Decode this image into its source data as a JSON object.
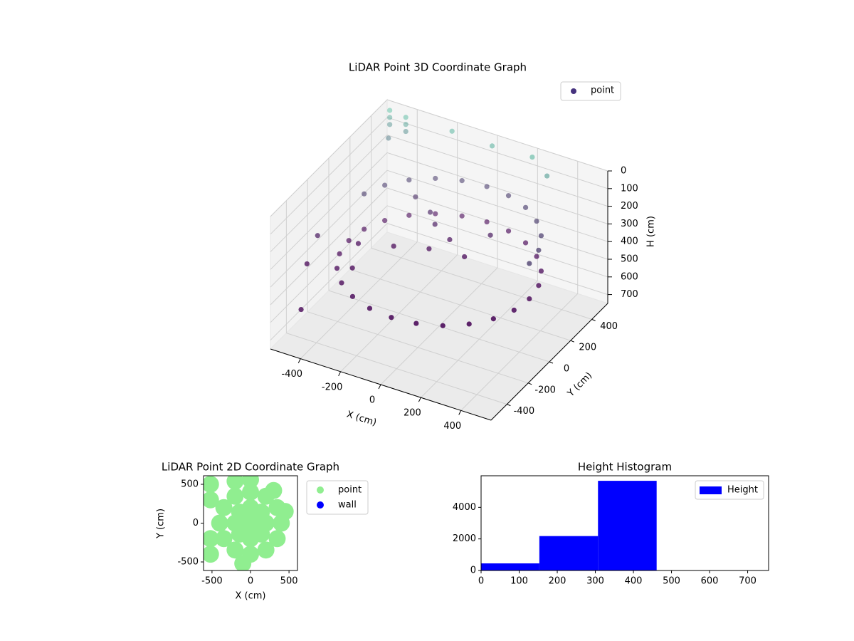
{
  "chart_data": [
    {
      "type": "scatter3d",
      "title": "LiDAR Point 3D Coordinate Graph",
      "xlabel": "X (cm)",
      "ylabel": "Y (cm)",
      "zlabel": "H (cm)",
      "xlim": [
        -550,
        550
      ],
      "ylim": [
        -550,
        550
      ],
      "zlim": [
        0,
        750
      ],
      "zinvert": true,
      "xticks": [
        -400,
        -200,
        0,
        200,
        400
      ],
      "yticks": [
        -400,
        -200,
        0,
        200,
        400
      ],
      "zticks": [
        0,
        100,
        200,
        300,
        400,
        500,
        600,
        700
      ],
      "grid": true,
      "legend": "upper right",
      "colormap": [
        "#5fc3a6",
        "#440154"
      ],
      "series": [
        {
          "name": "point",
          "color": "#46327e",
          "x": [
            450,
            435,
            390,
            318,
            225,
            116,
            0,
            -116,
            -225,
            -318,
            -390,
            -435,
            -450,
            -435,
            -390,
            -318,
            -225,
            -116,
            0,
            116,
            225,
            318,
            390,
            435,
            450,
            435,
            390,
            318,
            225,
            116,
            0,
            -116,
            -225,
            -318,
            -390,
            -435,
            -150,
            -100,
            0,
            -250,
            100,
            -50,
            150,
            -200,
            -500,
            -500,
            -500,
            -480,
            -420,
            -420,
            -420,
            -200,
            0,
            200,
            300,
            -500,
            -500,
            -450,
            -350,
            -300
          ],
          "y": [
            0,
            116,
            225,
            318,
            390,
            435,
            450,
            435,
            390,
            318,
            225,
            116,
            0,
            -116,
            -225,
            -318,
            -390,
            -435,
            -450,
            -435,
            -390,
            -318,
            -225,
            -116,
            0,
            116,
            225,
            318,
            390,
            435,
            450,
            435,
            390,
            318,
            225,
            116,
            200,
            150,
            100,
            250,
            50,
            0,
            200,
            -50,
            480,
            480,
            480,
            430,
            480,
            480,
            480,
            500,
            500,
            500,
            450,
            -200,
            -300,
            -450,
            -100,
            -250
          ],
          "z": [
            430,
            430,
            430,
            430,
            430,
            430,
            430,
            430,
            430,
            430,
            430,
            430,
            430,
            430,
            430,
            430,
            430,
            430,
            430,
            430,
            430,
            430,
            430,
            430,
            230,
            230,
            230,
            230,
            230,
            230,
            230,
            230,
            230,
            230,
            230,
            230,
            280,
            300,
            320,
            260,
            350,
            330,
            300,
            340,
            0,
            40,
            80,
            120,
            10,
            50,
            90,
            20,
            30,
            20,
            60,
            300,
            400,
            550,
            350,
            380
          ]
        }
      ]
    },
    {
      "type": "scatter",
      "title": "LiDAR Point 2D Coordinate Graph",
      "xlabel": "X (cm)",
      "ylabel": "Y (cm)",
      "xlim": [
        -610,
        610
      ],
      "ylim": [
        -610,
        610
      ],
      "xticks": [
        -500,
        0,
        500
      ],
      "yticks": [
        -500,
        0,
        500
      ],
      "legend": "outside right",
      "series": [
        {
          "name": "point",
          "color": "#90ee90",
          "x": [
            0,
            200,
            141,
            0,
            -141,
            -200,
            -141,
            0,
            141,
            400,
            346,
            200,
            0,
            -200,
            -346,
            -400,
            -346,
            -200,
            0,
            200,
            346,
            -520,
            -520,
            -520,
            -520,
            0,
            -200,
            -100,
            450,
            300
          ],
          "y": [
            0,
            0,
            141,
            200,
            141,
            0,
            -141,
            -200,
            -141,
            0,
            200,
            346,
            400,
            346,
            200,
            0,
            -200,
            -346,
            -400,
            -346,
            -200,
            500,
            300,
            -200,
            -400,
            560,
            540,
            -520,
            150,
            420
          ]
        },
        {
          "name": "wall",
          "color": "#0000ff",
          "x": [],
          "y": []
        }
      ]
    },
    {
      "type": "histogram",
      "title": "Height Histogram",
      "bins": [
        0,
        153,
        307,
        461,
        614,
        768
      ],
      "values": [
        450,
        2180,
        5680,
        0,
        20
      ],
      "xlim": [
        0,
        755
      ],
      "ylim": [
        0,
        6000
      ],
      "xticks": [
        0,
        100,
        200,
        300,
        400,
        500,
        600,
        700
      ],
      "yticks": [
        0,
        2000,
        4000
      ],
      "legend": "upper right",
      "series_name": "Height",
      "color": "#0000ff"
    }
  ]
}
